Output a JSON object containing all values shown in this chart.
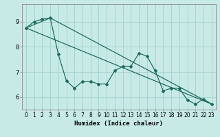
{
  "title": "",
  "xlabel": "Humidex (Indice chaleur)",
  "ylabel": "",
  "bg_color": "#c8eae6",
  "grid_color": "#a0d0cc",
  "line_color": "#1e6b5e",
  "xlim": [
    -0.5,
    23.5
  ],
  "ylim": [
    5.5,
    9.7
  ],
  "yticks": [
    6,
    7,
    8,
    9
  ],
  "xticks": [
    0,
    1,
    2,
    3,
    4,
    5,
    6,
    7,
    8,
    9,
    10,
    11,
    12,
    13,
    14,
    15,
    16,
    17,
    18,
    19,
    20,
    21,
    22,
    23
  ],
  "series1_x": [
    0,
    1,
    2,
    3,
    4,
    5,
    6,
    7,
    8,
    9,
    10,
    11,
    12,
    13,
    14,
    15,
    16,
    17,
    18,
    19,
    20,
    21,
    22,
    23
  ],
  "series1_y": [
    8.75,
    9.0,
    9.1,
    9.15,
    7.7,
    6.65,
    6.35,
    6.62,
    6.62,
    6.52,
    6.52,
    7.05,
    7.22,
    7.22,
    7.75,
    7.62,
    7.05,
    6.25,
    6.35,
    6.35,
    5.88,
    5.72,
    5.92,
    5.72
  ],
  "series2_x": [
    0,
    3,
    23
  ],
  "series2_y": [
    8.75,
    9.15,
    5.72
  ],
  "series3_x": [
    0,
    23
  ],
  "series3_y": [
    8.75,
    5.72
  ],
  "marker": "D",
  "markersize": 2.0,
  "linewidth": 0.9,
  "tick_fontsize": 5.5,
  "xlabel_fontsize": 6.5
}
